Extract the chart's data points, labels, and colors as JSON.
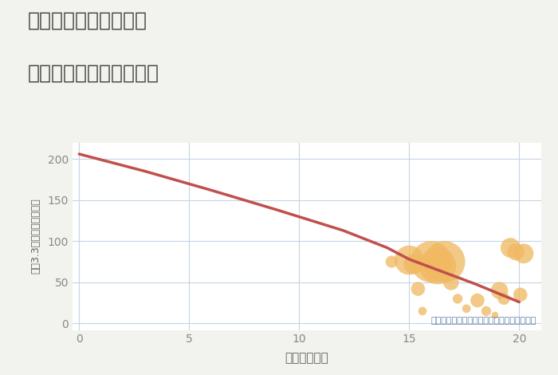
{
  "title_line1": "奈良県奈良市六条西の",
  "title_line2": "駅距離別中古戸建て価格",
  "xlabel": "駅距離（分）",
  "ylabel": "坪（3.3㎡）単価（万円）",
  "annotation": "円の大きさは、取引のあった物件面積を示す",
  "line_x": [
    0,
    3,
    6,
    9,
    12,
    14,
    15,
    16,
    17,
    18,
    19,
    20
  ],
  "line_y": [
    206,
    185,
    162,
    138,
    113,
    92,
    78,
    68,
    58,
    48,
    37,
    26
  ],
  "scatter_x": [
    14.2,
    15.0,
    15.2,
    15.4,
    15.6,
    16.0,
    16.3,
    16.6,
    16.9,
    17.2,
    17.6,
    18.1,
    18.5,
    18.9,
    19.1,
    19.3,
    19.6,
    19.85,
    20.05,
    20.2
  ],
  "scatter_y": [
    75,
    77,
    72,
    42,
    15,
    75,
    70,
    75,
    50,
    30,
    18,
    28,
    15,
    10,
    40,
    30,
    92,
    87,
    35,
    85
  ],
  "scatter_size": [
    120,
    700,
    320,
    160,
    60,
    1400,
    1100,
    1400,
    200,
    80,
    60,
    160,
    80,
    40,
    240,
    120,
    320,
    240,
    160,
    320
  ],
  "scatter_color": "#f0b860",
  "scatter_alpha": 0.75,
  "line_color": "#c0504d",
  "line_width": 2.5,
  "bg_color": "#f2f2ee",
  "plot_bg_color": "#ffffff",
  "grid_color": "#c5d5e5",
  "title_color": "#404040",
  "tick_color": "#888888",
  "xlabel_color": "#606060",
  "ylabel_color": "#606060",
  "annotation_color": "#6080a8",
  "xlim": [
    -0.3,
    21
  ],
  "ylim": [
    -8,
    220
  ],
  "xticks": [
    0,
    5,
    10,
    15,
    20
  ],
  "yticks": [
    0,
    50,
    100,
    150,
    200
  ]
}
